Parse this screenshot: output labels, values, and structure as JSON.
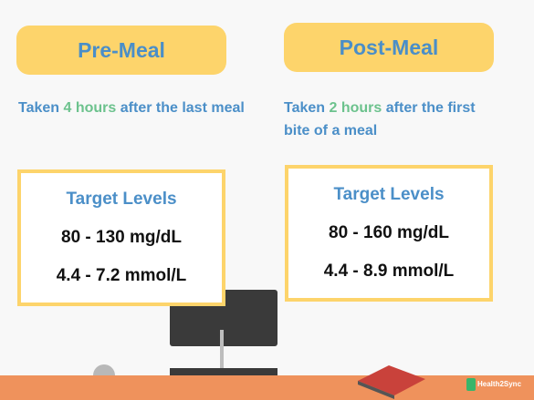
{
  "panels": [
    {
      "title": "Pre-Meal",
      "description": {
        "before": "Taken",
        "highlight": "4 hours",
        "after": "after the last meal"
      },
      "box": {
        "heading": "Target Levels",
        "lines": [
          "80 - 130 mg/dL",
          "4.4 - 7.2 mmol/L"
        ]
      }
    },
    {
      "title": "Post-Meal",
      "description": {
        "before": "Taken",
        "highlight": "2 hours",
        "after": "after the first bite of a meal"
      },
      "box": {
        "heading": "Target Levels",
        "lines": [
          "80 - 160 mg/dL",
          "4.4 - 8.9 mmol/L"
        ]
      }
    }
  ],
  "logo": "Health2Sync"
}
